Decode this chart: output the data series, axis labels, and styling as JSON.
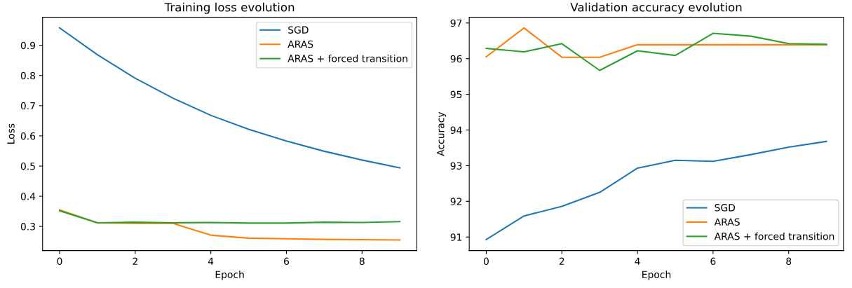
{
  "chart_data": [
    {
      "type": "line",
      "title": "Training loss evolution",
      "xlabel": "Epoch",
      "ylabel": "Loss",
      "x": [
        0,
        1,
        2,
        3,
        4,
        5,
        6,
        7,
        8,
        9
      ],
      "xlim": [
        -0.45,
        9.45
      ],
      "xticks": [
        0,
        2,
        4,
        6,
        8
      ],
      "ylim": [
        0.22,
        0.993
      ],
      "yticks": [
        0.3,
        0.4,
        0.5,
        0.6,
        0.7,
        0.8,
        0.9
      ],
      "grid": false,
      "legend": "top right",
      "series": [
        {
          "name": "SGD",
          "color": "#1f77b4",
          "values": [
            0.958,
            0.869,
            0.791,
            0.725,
            0.668,
            0.622,
            0.583,
            0.549,
            0.52,
            0.494
          ]
        },
        {
          "name": "ARAS",
          "color": "#ff7f0e",
          "values": [
            0.355,
            0.312,
            0.31,
            0.31,
            0.271,
            0.261,
            0.259,
            0.257,
            0.256,
            0.255
          ]
        },
        {
          "name": "ARAS + forced transition",
          "color": "#2ca02c",
          "values": [
            0.352,
            0.312,
            0.314,
            0.312,
            0.313,
            0.311,
            0.311,
            0.314,
            0.313,
            0.316
          ]
        }
      ]
    },
    {
      "type": "line",
      "title": "Validation accuracy evolution",
      "xlabel": "Epoch",
      "ylabel": "Accuracy",
      "x": [
        0,
        1,
        2,
        3,
        4,
        5,
        6,
        7,
        8,
        9
      ],
      "xlim": [
        -0.45,
        9.45
      ],
      "xticks": [
        0,
        2,
        4,
        6,
        8
      ],
      "ylim": [
        90.62,
        97.16
      ],
      "yticks": [
        91,
        92,
        93,
        94,
        95,
        96,
        97
      ],
      "grid": false,
      "legend": "bottom right",
      "series": [
        {
          "name": "SGD",
          "color": "#1f77b4",
          "values": [
            90.93,
            91.59,
            91.86,
            92.25,
            92.93,
            93.15,
            93.12,
            93.31,
            93.52,
            93.68
          ]
        },
        {
          "name": "ARAS",
          "color": "#ff7f0e",
          "values": [
            96.05,
            96.86,
            96.04,
            96.04,
            96.39,
            96.39,
            96.39,
            96.39,
            96.39,
            96.39
          ]
        },
        {
          "name": "ARAS + forced transition",
          "color": "#2ca02c",
          "values": [
            96.29,
            96.19,
            96.42,
            95.67,
            96.22,
            96.09,
            96.71,
            96.63,
            96.42,
            96.4
          ]
        }
      ]
    }
  ]
}
